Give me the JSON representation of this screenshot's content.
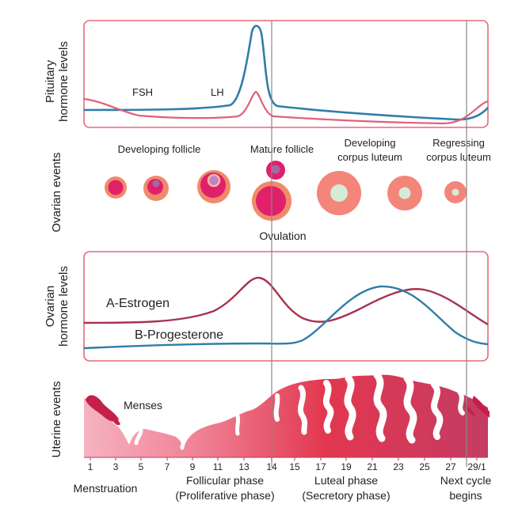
{
  "panels": {
    "pituitary": {
      "axis_title_line1": "Pituitary",
      "axis_title_line2": "hormone levels",
      "fsh_label": "FSH",
      "lh_label": "LH"
    },
    "ovarian_events": {
      "axis_title": "Ovarian events",
      "developing_follicle": "Developing follicle",
      "mature_follicle": "Mature follicle",
      "developing_cl_line1": "Developing",
      "developing_cl_line2": "corpus luteum",
      "regressing_cl_line1": "Regressing",
      "regressing_cl_line2": "corpus luteum",
      "ovulation": "Ovulation"
    },
    "ovarian_hormones": {
      "axis_title_line1": "Ovarian",
      "axis_title_line2": "hormone levels",
      "estrogen_label": "A-Estrogen",
      "progesterone_label": "B-Progesterone"
    },
    "uterine": {
      "axis_title": "Uterine events",
      "menses_label": "Menses"
    }
  },
  "day_ticks": [
    "1",
    "3",
    "5",
    "7",
    "9",
    "11",
    "13",
    "14",
    "15",
    "17",
    "19",
    "21",
    "23",
    "25",
    "27",
    "29/1"
  ],
  "phases": {
    "menstruation": "Menstruation",
    "follicular_line1": "Follicular phase",
    "follicular_line2": "(Proliferative phase)",
    "luteal_line1": "Luteal phase",
    "luteal_line2": "(Secretory phase)",
    "next_cycle_line1": "Next cycle",
    "next_cycle_line2": "begins"
  },
  "colors": {
    "frame": "#e46a7a",
    "lh": "#2f7ea8",
    "fsh": "#e0607a",
    "estrogen": "#a8324e",
    "progesterone": "#2f7ea8",
    "follicle_outer": "#f08a6a",
    "follicle_inner": "#e0206a",
    "oocyte": "#a06aa8",
    "corpus_luteum": "#f3857a",
    "corpus_core": "#d4ecd6",
    "endometrium_light": "#f3a7ba",
    "endometrium_mid": "#e33d55",
    "endometrium_dark": "#c23a5c",
    "divider": "#888888"
  }
}
